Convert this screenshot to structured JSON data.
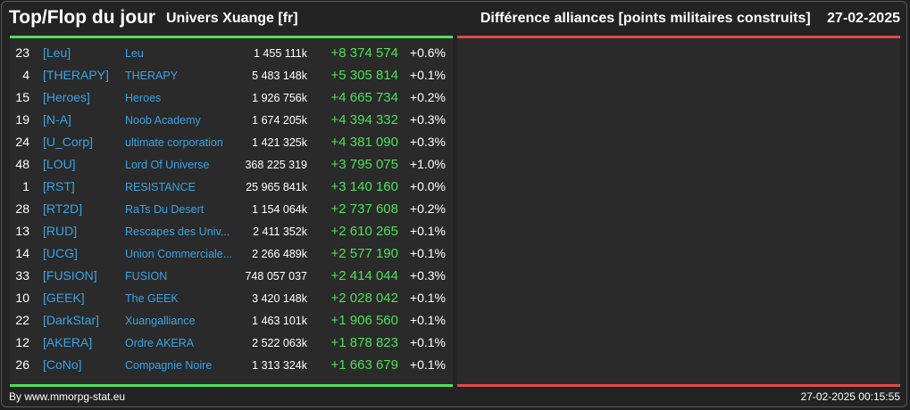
{
  "header": {
    "title": "Top/Flop du jour",
    "universe": "Univers Xuange [fr]",
    "ranking_label": "Différence alliances [points militaires construits]",
    "date": "27-02-2025"
  },
  "colors": {
    "top_accent": "#4de05a",
    "flop_accent": "#e04a4a",
    "link": "#3aa3e6"
  },
  "top_rows": [
    {
      "rank": "23",
      "tag": "[Leu]",
      "name": "Leu",
      "points": "1 455 111k",
      "diff": "+8 374 574",
      "pct": "+0.6%"
    },
    {
      "rank": "4",
      "tag": "[THERAPY]",
      "name": "THERAPY",
      "points": "5 483 148k",
      "diff": "+5 305 814",
      "pct": "+0.1%"
    },
    {
      "rank": "15",
      "tag": "[Heroes]",
      "name": "Heroes",
      "points": "1 926 756k",
      "diff": "+4 665 734",
      "pct": "+0.2%"
    },
    {
      "rank": "19",
      "tag": "[N-A]",
      "name": "Noob Academy",
      "points": "1 674 205k",
      "diff": "+4 394 332",
      "pct": "+0.3%"
    },
    {
      "rank": "24",
      "tag": "[U_Corp]",
      "name": "ultimate corporation",
      "points": "1 421 325k",
      "diff": "+4 381 090",
      "pct": "+0.3%"
    },
    {
      "rank": "48",
      "tag": "[LOU]",
      "name": "Lord Of Universe",
      "points": "368 225 319",
      "diff": "+3 795 075",
      "pct": "+1.0%"
    },
    {
      "rank": "1",
      "tag": "[RST]",
      "name": "RESISTANCE",
      "points": "25 965 841k",
      "diff": "+3 140 160",
      "pct": "+0.0%"
    },
    {
      "rank": "28",
      "tag": "[RT2D]",
      "name": "RaTs Du Desert",
      "points": "1 154 064k",
      "diff": "+2 737 608",
      "pct": "+0.2%"
    },
    {
      "rank": "13",
      "tag": "[RUD]",
      "name": "Rescapes des Univ...",
      "points": "2 411 352k",
      "diff": "+2 610 265",
      "pct": "+0.1%"
    },
    {
      "rank": "14",
      "tag": "[UCG]",
      "name": "Union Commerciale...",
      "points": "2 266 489k",
      "diff": "+2 577 190",
      "pct": "+0.1%"
    },
    {
      "rank": "33",
      "tag": "[FUSION]",
      "name": "FUSION",
      "points": "748 057 037",
      "diff": "+2 414 044",
      "pct": "+0.3%"
    },
    {
      "rank": "10",
      "tag": "[GEEK]",
      "name": "The GEEK",
      "points": "3 420 148k",
      "diff": "+2 028 042",
      "pct": "+0.1%"
    },
    {
      "rank": "22",
      "tag": "[DarkStar]",
      "name": "Xuangalliance",
      "points": "1 463 101k",
      "diff": "+1 906 560",
      "pct": "+0.1%"
    },
    {
      "rank": "12",
      "tag": "[AKERA]",
      "name": "Ordre AKERA",
      "points": "2 522 063k",
      "diff": "+1 878 823",
      "pct": "+0.1%"
    },
    {
      "rank": "26",
      "tag": "[CoNo]",
      "name": "Compagnie Noire",
      "points": "1 313 324k",
      "diff": "+1 663 679",
      "pct": "+0.1%"
    }
  ],
  "footer": {
    "credit": "By www.mmorpg-stat.eu",
    "timestamp": "27-02-2025 00:15:55"
  }
}
